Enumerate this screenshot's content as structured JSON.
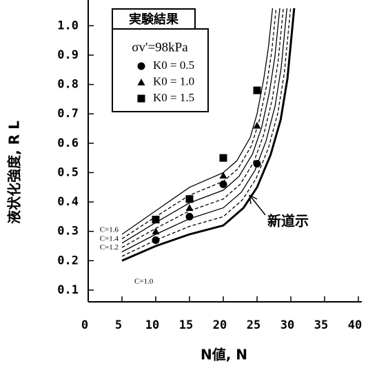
{
  "chart_data": {
    "type": "scatter",
    "x_label": "N値, N",
    "y_label": "液状化強度, R L",
    "legend_title": "実験結果",
    "legend_subtitle": "σv'=98kPa",
    "xlim": [
      0,
      40
    ],
    "ylim": [
      0.06,
      1.07
    ],
    "xticks": [
      0,
      5,
      10,
      15,
      20,
      25,
      30,
      35,
      40
    ],
    "yticks": [
      0.1,
      0.2,
      0.3,
      0.4,
      0.5,
      0.6,
      0.7,
      0.8,
      0.9,
      {
        "value": 1,
        "label": "1.0"
      }
    ],
    "series": [
      {
        "name": "K0 = 0.5",
        "marker": "circle",
        "color": "#000000",
        "x": [
          10,
          15,
          20,
          25
        ],
        "values": [
          0.27,
          0.35,
          0.46,
          0.53
        ]
      },
      {
        "name": "K0 = 1.0",
        "marker": "triangle",
        "color": "#000000",
        "x": [
          10,
          15,
          20,
          25
        ],
        "values": [
          0.3,
          0.38,
          0.49,
          0.66
        ]
      },
      {
        "name": "K0 = 1.5",
        "marker": "square",
        "color": "#000000",
        "x": [
          10,
          15,
          20,
          25
        ],
        "values": [
          0.34,
          0.41,
          0.55,
          0.78
        ]
      }
    ],
    "curves": [
      {
        "label": "C=1.0",
        "style": "bold",
        "x": [
          5,
          10,
          15,
          20,
          23,
          25,
          27,
          28.5,
          29.5,
          30.5
        ],
        "values": [
          0.2,
          0.25,
          0.29,
          0.32,
          0.38,
          0.45,
          0.56,
          0.68,
          0.82,
          1.06
        ]
      },
      {
        "style": "dashed",
        "x": [
          5,
          10,
          15,
          20,
          22.83,
          24.83,
          26.67,
          28.08,
          29.03,
          29.97
        ],
        "values": [
          0.215,
          0.27,
          0.317,
          0.35,
          0.407,
          0.478,
          0.583,
          0.703,
          0.838,
          1.06
        ]
      },
      {
        "label": "C=1.2",
        "style": "solid",
        "x": [
          5,
          10,
          15,
          20,
          22.67,
          24.67,
          26.33,
          27.67,
          28.57,
          29.43
        ],
        "values": [
          0.23,
          0.29,
          0.343,
          0.38,
          0.433,
          0.507,
          0.607,
          0.727,
          0.857,
          1.06
        ]
      },
      {
        "style": "dashed",
        "x": [
          5,
          10,
          15,
          20,
          22.5,
          24.5,
          26,
          27.25,
          28.1,
          28.9
        ],
        "values": [
          0.245,
          0.31,
          0.37,
          0.41,
          0.46,
          0.535,
          0.63,
          0.75,
          0.875,
          1.06
        ]
      },
      {
        "label": "C=1.4",
        "style": "solid",
        "x": [
          5,
          10,
          15,
          20,
          22.33,
          24.33,
          25.67,
          26.83,
          27.63,
          28.37
        ],
        "values": [
          0.26,
          0.33,
          0.397,
          0.44,
          0.487,
          0.563,
          0.653,
          0.773,
          0.893,
          1.06
        ]
      },
      {
        "style": "dashed",
        "x": [
          5,
          10,
          15,
          20,
          22.17,
          24.17,
          25.33,
          26.42,
          27.17,
          27.83
        ],
        "values": [
          0.275,
          0.35,
          0.423,
          0.47,
          0.513,
          0.592,
          0.677,
          0.797,
          0.912,
          1.06
        ]
      },
      {
        "label": "C=1.6",
        "style": "solid",
        "x": [
          5,
          10,
          15,
          20,
          22,
          24,
          25,
          26,
          26.7,
          27.3
        ],
        "values": [
          0.29,
          0.37,
          0.45,
          0.5,
          0.54,
          0.62,
          0.7,
          0.82,
          0.93,
          1.06
        ]
      }
    ],
    "annotation": "新道示"
  }
}
